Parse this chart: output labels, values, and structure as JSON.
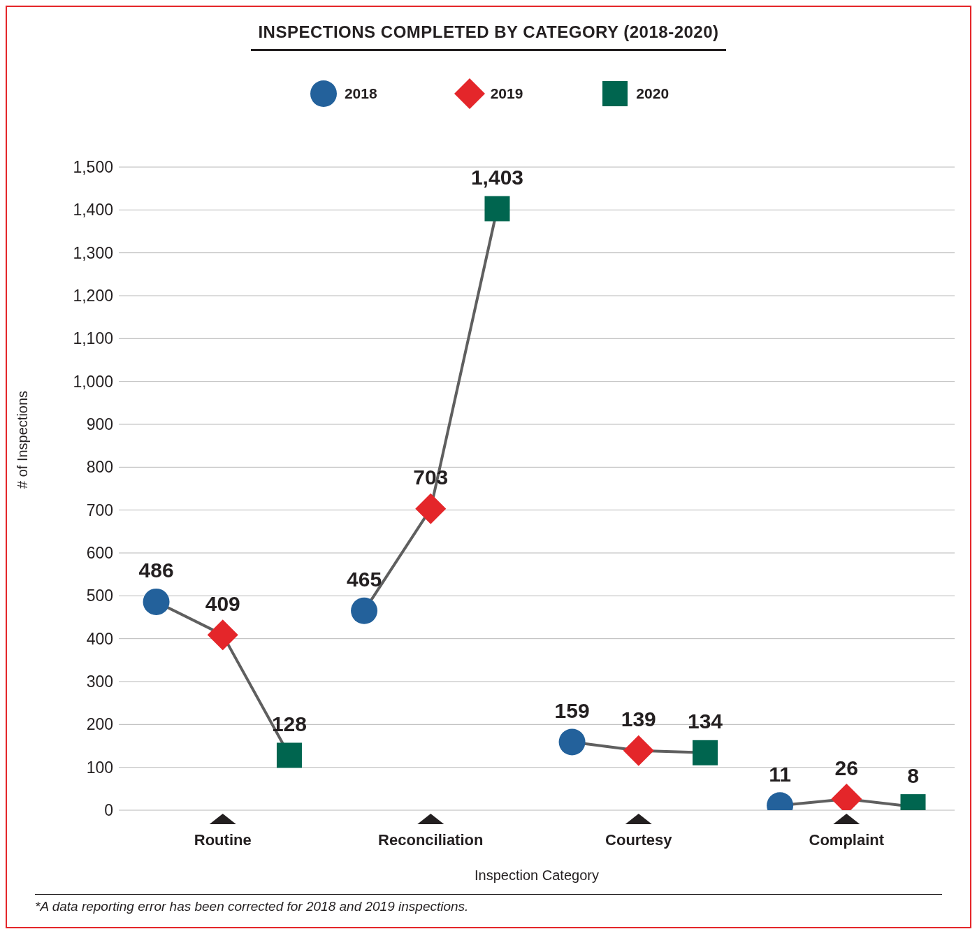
{
  "chart_data": {
    "type": "scatter",
    "title": "INSPECTIONS COMPLETED BY CATEGORY (2018-2020)",
    "xlabel": "Inspection Category",
    "ylabel": "# of Inspections",
    "categories": [
      "Routine",
      "Reconciliation",
      "Courtesy",
      "Complaint"
    ],
    "series": [
      {
        "name": "2018",
        "color": "#23619b",
        "marker": "circle",
        "values": [
          486,
          465,
          159,
          11
        ],
        "value_labels": [
          "486",
          "465",
          "159",
          "11"
        ]
      },
      {
        "name": "2019",
        "color": "#e4262a",
        "marker": "diamond",
        "values": [
          409,
          703,
          139,
          26
        ],
        "value_labels": [
          "409",
          "703",
          "139",
          "26"
        ]
      },
      {
        "name": "2020",
        "color": "#00654f",
        "marker": "square",
        "values": [
          128,
          1403,
          134,
          8
        ],
        "value_labels": [
          "128",
          "1,403",
          "134",
          "8"
        ]
      }
    ],
    "ylim": [
      0,
      1500
    ],
    "yticks": [
      0,
      {
        "value": 100,
        "label": "100"
      },
      200,
      300,
      400,
      500,
      600,
      700,
      800,
      900,
      {
        "value": 1000,
        "label": "1,000"
      },
      {
        "value": 1100,
        "label": "1,100"
      },
      {
        "value": 1200,
        "label": "1,200"
      },
      {
        "value": 1300,
        "label": "1,300"
      },
      {
        "value": 1400,
        "label": "1,400"
      },
      {
        "value": 1500,
        "label": "1,500"
      }
    ],
    "grid": "y",
    "legend": "top",
    "line_style": "solid",
    "annotations": [
      "*A data reporting error has been corrected for 2018 and 2019 inspections."
    ]
  }
}
